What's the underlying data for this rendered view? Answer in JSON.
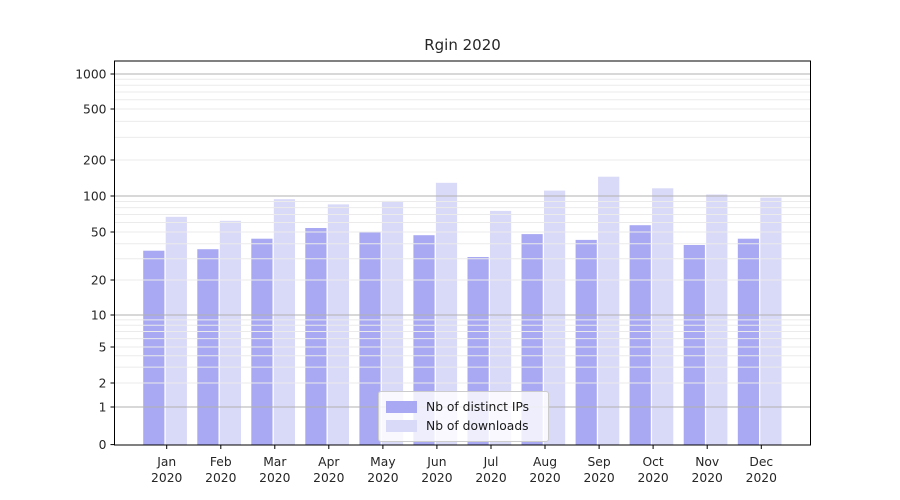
{
  "chart_data": {
    "type": "bar",
    "title": "Rgin 2020",
    "xlabel": "",
    "ylabel": "",
    "categories_line1": [
      "Jan",
      "Feb",
      "Mar",
      "Apr",
      "May",
      "Jun",
      "Jul",
      "Aug",
      "Sep",
      "Oct",
      "Nov",
      "Dec"
    ],
    "categories_line2": "2020",
    "series": [
      {
        "name": "Nb of distinct IPs",
        "color": "#a9a9f3",
        "values": [
          35,
          36,
          44,
          54,
          50,
          47,
          31,
          48,
          43,
          57,
          39,
          44
        ]
      },
      {
        "name": "Nb of downloads",
        "color": "#d9d9f8",
        "values": [
          67,
          62,
          94,
          85,
          91,
          129,
          75,
          111,
          145,
          116,
          103,
          97
        ]
      }
    ],
    "yaxis": {
      "scale": "symlog",
      "tick_values": [
        0,
        1,
        2,
        5,
        10,
        20,
        50,
        100,
        200,
        500,
        1000
      ],
      "tick_labels": [
        "0",
        "1",
        "2",
        "5",
        "10",
        "20",
        "50",
        "100",
        "200",
        "500",
        "1000"
      ],
      "major_gridlines": [
        1,
        10,
        100,
        1000
      ],
      "minor_gridlines": [
        2,
        3,
        4,
        5,
        6,
        7,
        8,
        9,
        20,
        30,
        40,
        50,
        60,
        70,
        80,
        90,
        200,
        300,
        400,
        500,
        600,
        700,
        800,
        900
      ],
      "ylim": [
        0,
        1300
      ]
    },
    "legend": {
      "position": "inside-bottom-center"
    },
    "grid": true,
    "colors": {
      "major_grid": "#b1b1b1",
      "minor_grid": "#ebebeb",
      "axis": "#000000",
      "text": "#262626",
      "legend_border": "#cccccc"
    }
  }
}
